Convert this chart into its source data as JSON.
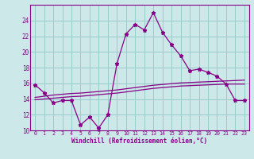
{
  "xlabel": "Windchill (Refroidissement éolien,°C)",
  "bg_color": "#cce8e8",
  "line_color": "#880088",
  "grid_color": "#99cccc",
  "hours": [
    0,
    1,
    2,
    3,
    4,
    5,
    6,
    7,
    8,
    9,
    10,
    11,
    12,
    13,
    14,
    15,
    16,
    17,
    18,
    19,
    20,
    21,
    22,
    23
  ],
  "windchill": [
    15.8,
    14.8,
    13.5,
    13.8,
    13.8,
    10.7,
    11.7,
    10.3,
    12.0,
    18.5,
    22.3,
    23.5,
    22.8,
    25.0,
    22.5,
    20.9,
    19.5,
    17.6,
    17.8,
    17.4,
    16.9,
    15.9,
    13.8,
    13.8
  ],
  "line2": [
    14.2,
    14.35,
    14.5,
    14.6,
    14.7,
    14.75,
    14.85,
    14.95,
    15.05,
    15.15,
    15.3,
    15.45,
    15.6,
    15.75,
    15.85,
    15.95,
    16.05,
    16.1,
    16.15,
    16.2,
    16.25,
    16.3,
    16.35,
    16.4
  ],
  "line3": [
    13.9,
    14.0,
    14.1,
    14.2,
    14.3,
    14.35,
    14.45,
    14.55,
    14.65,
    14.75,
    14.9,
    15.05,
    15.2,
    15.35,
    15.45,
    15.55,
    15.65,
    15.7,
    15.75,
    15.8,
    15.85,
    15.9,
    15.9,
    15.9
  ],
  "ylim": [
    10,
    26
  ],
  "xlim": [
    -0.5,
    23.5
  ],
  "yticks": [
    10,
    12,
    14,
    16,
    18,
    20,
    22,
    24
  ],
  "xticks": [
    0,
    1,
    2,
    3,
    4,
    5,
    6,
    7,
    8,
    9,
    10,
    11,
    12,
    13,
    14,
    15,
    16,
    17,
    18,
    19,
    20,
    21,
    22,
    23
  ]
}
